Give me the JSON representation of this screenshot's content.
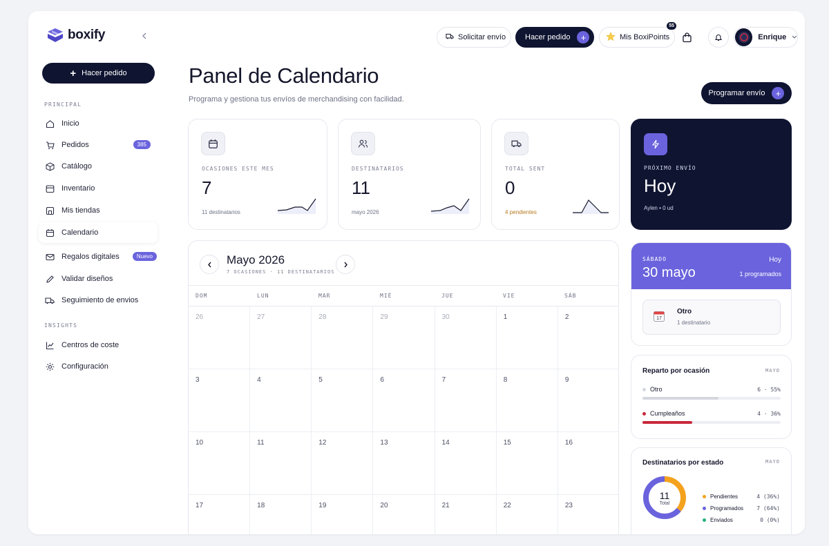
{
  "brand": {
    "name": "boxify"
  },
  "sidebar": {
    "cta_label": "Hacer pedido",
    "section_principal": "PRINCIPAL",
    "section_insights": "INSIGHTS",
    "items": [
      {
        "label": "Inicio",
        "icon": "home-icon"
      },
      {
        "label": "Pedidos",
        "icon": "cart-icon",
        "badge": "385"
      },
      {
        "label": "Catálogo",
        "icon": "box-icon"
      },
      {
        "label": "Inventario",
        "icon": "archive-icon"
      },
      {
        "label": "Mis tiendas",
        "icon": "store-icon"
      },
      {
        "label": "Calendario",
        "icon": "calendar-icon",
        "active": true
      },
      {
        "label": "Regalos digitales",
        "icon": "mail-icon",
        "badge": "Nuevo"
      },
      {
        "label": "Validar diseños",
        "icon": "pen-icon"
      },
      {
        "label": "Seguimiento de envios",
        "icon": "truck-icon"
      }
    ],
    "insights_items": [
      {
        "label": "Centros de coste",
        "icon": "chart-line-icon"
      },
      {
        "label": "Configuración",
        "icon": "settings-icon"
      }
    ]
  },
  "topbar": {
    "solicitar": "Solicitar envío",
    "hacer_pedido": "Hacer pedido",
    "boxipoints": "Mis BoxiPoints",
    "boxipoints_count": "55",
    "user_name": "Enrique"
  },
  "header": {
    "title": "Panel de Calendario",
    "subtitle": "Programa y gestiona tus envíos de merchandising con facilidad.",
    "program_btn": "Programar envío"
  },
  "stats": [
    {
      "label": "OCASIONES ESTE MES",
      "value": "7",
      "foot": "11 destinatarios",
      "icon": "calendar-icon"
    },
    {
      "label": "DESTINATARIOS",
      "value": "11",
      "foot": "mayo 2026",
      "icon": "users-icon"
    },
    {
      "label": "TOTAL SENT",
      "value": "0",
      "foot": "4 pendientes",
      "icon": "truck-icon"
    }
  ],
  "next_shipment": {
    "label": "PRÓXIMO ENVÍO",
    "value": "Hoy",
    "foot": "Aylen • 0 ud"
  },
  "calendar": {
    "month": "Mayo 2026",
    "sub": "7 OCASIONES · 11 DESTINATARIOS",
    "weekdays": [
      "DOM",
      "LUN",
      "MAR",
      "MIÉ",
      "JUE",
      "VIE",
      "SÁB"
    ],
    "weeks": [
      [
        {
          "d": "26",
          "m": true
        },
        {
          "d": "27",
          "m": true
        },
        {
          "d": "28",
          "m": true
        },
        {
          "d": "29",
          "m": true
        },
        {
          "d": "30",
          "m": true
        },
        {
          "d": "1"
        },
        {
          "d": "2"
        }
      ],
      [
        {
          "d": "3"
        },
        {
          "d": "4"
        },
        {
          "d": "5"
        },
        {
          "d": "6"
        },
        {
          "d": "7"
        },
        {
          "d": "8"
        },
        {
          "d": "9"
        }
      ],
      [
        {
          "d": "10"
        },
        {
          "d": "11"
        },
        {
          "d": "12"
        },
        {
          "d": "13"
        },
        {
          "d": "14"
        },
        {
          "d": "15"
        },
        {
          "d": "16"
        }
      ],
      [
        {
          "d": "17"
        },
        {
          "d": "18"
        },
        {
          "d": "19"
        },
        {
          "d": "20"
        },
        {
          "d": "21"
        },
        {
          "d": "22"
        },
        {
          "d": "23"
        }
      ]
    ]
  },
  "selected_day": {
    "weekday": "SÁBADO",
    "date": "30 mayo",
    "today": "Hoy",
    "count": "1 programados",
    "event_title": "Otro",
    "event_sub": "1 destinatario"
  },
  "reparto": {
    "title": "Reparto por ocasión",
    "tag": "MAYO",
    "rows": [
      {
        "label": "Otro",
        "value": "6 · 55%",
        "pct": 55,
        "color": "#d5d7df"
      },
      {
        "label": "Cumpleaños",
        "value": "4 · 36%",
        "pct": 36,
        "color": "#c8283a"
      }
    ]
  },
  "estado": {
    "title": "Destinatarios por estado",
    "tag": "MAYO",
    "total": "11",
    "total_label": "Total",
    "rows": [
      {
        "label": "Pendientes",
        "value": "4 (36%)",
        "pct": 36,
        "color": "#f4a21d"
      },
      {
        "label": "Programados",
        "value": "7 (64%)",
        "pct": 64,
        "color": "#6a63dd"
      },
      {
        "label": "Enviados",
        "value": "0 (0%)",
        "pct": 0,
        "color": "#22b07d"
      }
    ]
  }
}
